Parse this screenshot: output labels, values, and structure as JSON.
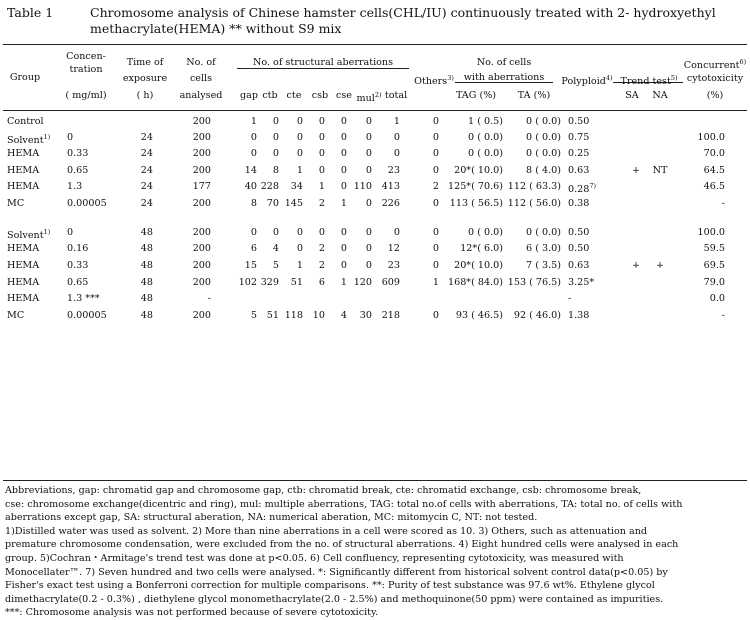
{
  "title": {
    "label": "Table 1",
    "line1": "Chromosome analysis of Chinese hamster cells(CHL/IU) continuously treated with 2- hydroxyethyl",
    "line2": "methacrylate(HEMA) ** without S9 mix"
  },
  "headers": {
    "group": "Group",
    "conc1": "Concen-",
    "conc2": "tration",
    "conc3": "( mg/ml)",
    "time1": "Time of",
    "time2": "exposure",
    "time3": "( h)",
    "cells1": "No. of",
    "cells2": "cells",
    "cells3": "analysed",
    "structural": "No. of structural aberrations",
    "gap": "gap",
    "ctb": "ctb",
    "cte": "cte",
    "csb": "csb",
    "cse": "cse",
    "mul": "mul",
    "mul_sup": "2)",
    "total": "total",
    "others": "Others",
    "others_sup": "3)",
    "nocells1": "No. of cells",
    "nocells2": "with aberrations",
    "tag": "TAG (%)",
    "ta": "TA (%)",
    "polyploid": "Polyploid",
    "polyploid_sup": "4)",
    "trend": "Trend test",
    "trend_sup": "5)",
    "sa": "SA",
    "na": "NA",
    "concurrent1": "Concurrent",
    "concurrent_sup": "6)",
    "concurrent2": "cytotoxicity",
    "concurrent3": "(%)"
  },
  "rows": [
    {
      "group": "Control",
      "sup": "",
      "conc": "",
      "time": "",
      "cells": "200",
      "gap": "1",
      "ctb": "0",
      "cte": "0",
      "csb": "0",
      "cse": "0",
      "mul": "0",
      "total": "1",
      "others": "0",
      "tag": "1 ( 0.5)",
      "ta": "0 ( 0.0)",
      "poly": "0.50",
      "sa": "",
      "na": "",
      "cyto": ""
    },
    {
      "group": "Solvent",
      "sup": "1)",
      "conc": "0",
      "time": "24",
      "cells": "200",
      "gap": "0",
      "ctb": "0",
      "cte": "0",
      "csb": "0",
      "cse": "0",
      "mul": "0",
      "total": "0",
      "others": "0",
      "tag": "0 ( 0.0)",
      "ta": "0 ( 0.0)",
      "poly": "0.75",
      "sa": "",
      "na": "",
      "cyto": "100.0"
    },
    {
      "group": "HEMA",
      "sup": "",
      "conc": "0.33",
      "time": "24",
      "cells": "200",
      "gap": "0",
      "ctb": "0",
      "cte": "0",
      "csb": "0",
      "cse": "0",
      "mul": "0",
      "total": "0",
      "others": "0",
      "tag": "0 ( 0.0)",
      "ta": "0 ( 0.0)",
      "poly": "0.25",
      "sa": "",
      "na": "",
      "cyto": "70.0"
    },
    {
      "group": "HEMA",
      "sup": "",
      "conc": "0.65",
      "time": "24",
      "cells": "200",
      "gap": "14",
      "ctb": "8",
      "cte": "1",
      "csb": "0",
      "cse": "0",
      "mul": "0",
      "total": "23",
      "others": "0",
      "tag": "20*( 10.0)",
      "ta": "8 ( 4.0)",
      "poly": "0.63",
      "sa": "+",
      "na": "NT",
      "cyto": "64.5"
    },
    {
      "group": "HEMA",
      "sup": "",
      "conc": "1.3",
      "time": "24",
      "cells": "177",
      "gap": "40",
      "ctb": "228",
      "cte": "34",
      "csb": "1",
      "cse": "0",
      "mul": "110",
      "total": "413",
      "others": "2",
      "tag": "125*( 70.6)",
      "ta": "112 ( 63.3)",
      "poly": "0.28",
      "poly_sup": "7)",
      "sa": "",
      "na": "",
      "cyto": "46.5"
    },
    {
      "group": "MC",
      "sup": "",
      "conc": "0.00005",
      "time": "24",
      "cells": "200",
      "gap": "8",
      "ctb": "70",
      "cte": "145",
      "csb": "2",
      "cse": "1",
      "mul": "0",
      "total": "226",
      "others": "0",
      "tag": "113 ( 56.5)",
      "ta": "112 ( 56.0)",
      "poly": "0.38",
      "sa": "",
      "na": "",
      "cyto": "-"
    },
    {
      "group": "Solvent",
      "sup": "1)",
      "conc": "0",
      "time": "48",
      "cells": "200",
      "gap": "0",
      "ctb": "0",
      "cte": "0",
      "csb": "0",
      "cse": "0",
      "mul": "0",
      "total": "0",
      "others": "0",
      "tag": "0 ( 0.0)",
      "ta": "0 ( 0.0)",
      "poly": "0.50",
      "sa": "",
      "na": "",
      "cyto": "100.0"
    },
    {
      "group": "HEMA",
      "sup": "",
      "conc": "0.16",
      "time": "48",
      "cells": "200",
      "gap": "6",
      "ctb": "4",
      "cte": "0",
      "csb": "2",
      "cse": "0",
      "mul": "0",
      "total": "12",
      "others": "0",
      "tag": "12*( 6.0)",
      "ta": "6 ( 3.0)",
      "poly": "0.50",
      "sa": "",
      "na": "",
      "cyto": "59.5"
    },
    {
      "group": "HEMA",
      "sup": "",
      "conc": "0.33",
      "time": "48",
      "cells": "200",
      "gap": "15",
      "ctb": "5",
      "cte": "1",
      "csb": "2",
      "cse": "0",
      "mul": "0",
      "total": "23",
      "others": "0",
      "tag": "20*( 10.0)",
      "ta": "7 ( 3.5)",
      "poly": "0.63",
      "sa": "+",
      "na": "+",
      "cyto": "69.5"
    },
    {
      "group": "HEMA",
      "sup": "",
      "conc": "0.65",
      "time": "48",
      "cells": "200",
      "gap": "102",
      "ctb": "329",
      "cte": "51",
      "csb": "6",
      "cse": "1",
      "mul": "120",
      "total": "609",
      "others": "1",
      "tag": "168*( 84.0)",
      "ta": "153 ( 76.5)",
      "poly": "3.25*",
      "sa": "",
      "na": "",
      "cyto": "79.0"
    },
    {
      "group": "HEMA",
      "sup": "",
      "conc": "1.3 ***",
      "time": "48",
      "cells": "-",
      "gap": "",
      "ctb": "",
      "cte": "",
      "csb": "",
      "cse": "",
      "mul": "",
      "total": "",
      "others": "",
      "tag": "",
      "ta": "",
      "poly": "-",
      "sa": "",
      "na": "",
      "cyto": "0.0"
    },
    {
      "group": "MC",
      "sup": "",
      "conc": "0.00005",
      "time": "48",
      "cells": "200",
      "gap": "5",
      "ctb": "51",
      "cte": "118",
      "csb": "10",
      "cse": "4",
      "mul": "30",
      "total": "218",
      "others": "0",
      "tag": "93 ( 46.5)",
      "ta": "92 ( 46.0)",
      "poly": "1.38",
      "sa": "",
      "na": "",
      "cyto": "-"
    }
  ],
  "footnotes": [
    "Abbreviations,  gap: chromatid gap and chromosome gap,  ctb: chromatid break,  cte:  chromatid exchange,  csb: chromosome break,",
    "cse: chromosome exchange(dicentric and ring),  mul: multiple aberrations,  TAG: total no.of cells with aberrations, TA: total no. of cells with",
    "aberrations except gap, SA: structural aberation, NA: numerical aberation,  MC: mitomycin C, NT: not tested.",
    "1)Distilled water was used as solvent.   2) More than nine aberrations in a cell were scored as 10.   3) Others,  such as attenuation and",
    "premature chromosome condensation, were excluded from the no. of structural aberrations.   4) Eight hundred cells were analysed in each",
    "group.   5)Cochran・Armitage's trend test was done at p<0.05.  6) Cell confluency, representing cytotoxicity, was measured with",
    "Monocellater™.  7) Seven hundred and two cells were analysed.   *: Significantly different from historical solvent control data(p<0.05) by",
    "Fisher's exact test using a Bonferroni correction for multiple comparisons.  **: Purity of test substance was 97.6 wt%. Ethylene glycol",
    "dimethacrylate(0.2 - 0.3%) , diethylene glycol monomethacrylate(2.0 - 2.5%) and methoquinone(50 ppm) were contained as impurities.",
    "***: Chromosome analysis was not performed because of severe cytotoxicity."
  ]
}
